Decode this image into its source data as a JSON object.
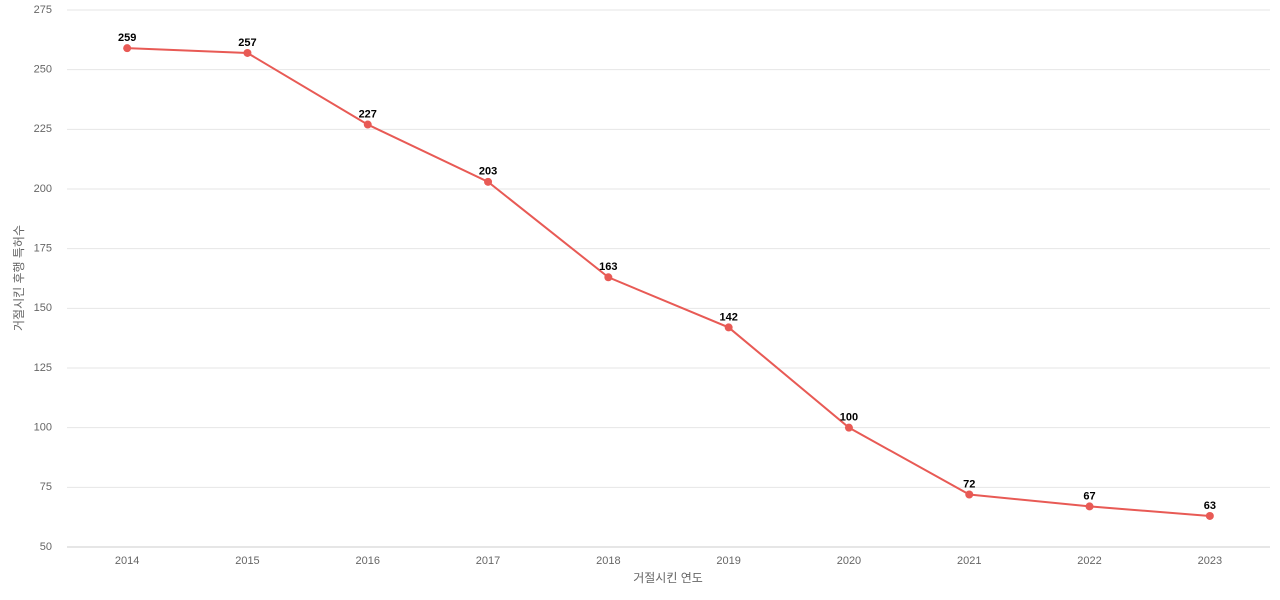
{
  "chart_data": {
    "type": "line",
    "x_label": "거절시킨 연도",
    "y_label": "거절시킨 후행 특허수",
    "categories": [
      "2014",
      "2015",
      "2016",
      "2017",
      "2018",
      "2019",
      "2020",
      "2021",
      "2022",
      "2023"
    ],
    "series": [
      {
        "color": "#e85a55",
        "values": [
          259,
          257,
          227,
          203,
          163,
          142,
          100,
          72,
          67,
          63
        ]
      }
    ],
    "ylim": [
      50,
      275
    ],
    "yticks": [
      50,
      75,
      100,
      125,
      150,
      175,
      200,
      225,
      250,
      275
    ],
    "grid": true,
    "data_labels": true
  }
}
